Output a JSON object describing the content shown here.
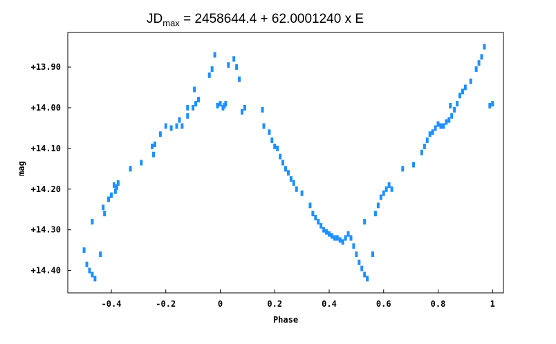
{
  "chart_data": {
    "type": "scatter",
    "title": {
      "prefix": "JD",
      "subscript": "max",
      "suffix": " = 2458644.4 + 62.0001240 x E"
    },
    "xlabel": "Phase",
    "ylabel": "mag",
    "xlim": [
      -0.56,
      1.04
    ],
    "ylim": [
      14.455,
      13.815
    ],
    "y_inverted": true,
    "grid": false,
    "x_ticks": [
      {
        "value": -0.4,
        "label": "-0.4"
      },
      {
        "value": -0.2,
        "label": "-0.2"
      },
      {
        "value": 0,
        "label": "0"
      },
      {
        "value": 0.2,
        "label": "0.2"
      },
      {
        "value": 0.4,
        "label": "0.4"
      },
      {
        "value": 0.6,
        "label": "0.6"
      },
      {
        "value": 0.8,
        "label": "0.8"
      },
      {
        "value": 1,
        "label": "1"
      }
    ],
    "y_ticks": [
      {
        "value": 13.9,
        "label": "+13.90"
      },
      {
        "value": 14.0,
        "label": "+14.00"
      },
      {
        "value": 14.1,
        "label": "+14.10"
      },
      {
        "value": 14.2,
        "label": "+14.20"
      },
      {
        "value": 14.3,
        "label": "+14.30"
      },
      {
        "value": 14.4,
        "label": "+14.40"
      }
    ],
    "series": [
      {
        "color": "#1f8fff",
        "points": [
          [
            -0.5,
            14.35
          ],
          [
            -0.49,
            14.385
          ],
          [
            -0.48,
            14.4
          ],
          [
            -0.47,
            14.41
          ],
          [
            -0.46,
            14.42
          ],
          [
            -0.47,
            14.28
          ],
          [
            -0.44,
            14.36
          ],
          [
            -0.43,
            14.245
          ],
          [
            -0.425,
            14.26
          ],
          [
            -0.41,
            14.225
          ],
          [
            -0.4,
            14.215
          ],
          [
            -0.39,
            14.19
          ],
          [
            -0.385,
            14.205
          ],
          [
            -0.38,
            14.195
          ],
          [
            -0.375,
            14.185
          ],
          [
            -0.33,
            14.15
          ],
          [
            -0.29,
            14.135
          ],
          [
            -0.25,
            14.095
          ],
          [
            -0.245,
            14.115
          ],
          [
            -0.24,
            14.09
          ],
          [
            -0.22,
            14.065
          ],
          [
            -0.2,
            14.045
          ],
          [
            -0.18,
            14.05
          ],
          [
            -0.16,
            14.045
          ],
          [
            -0.15,
            14.03
          ],
          [
            -0.14,
            14.045
          ],
          [
            -0.12,
            14.02
          ],
          [
            -0.1,
            14.0
          ],
          [
            -0.09,
            13.99
          ],
          [
            -0.08,
            13.98
          ],
          [
            -0.095,
            13.955
          ],
          [
            -0.12,
            14.0
          ],
          [
            -0.04,
            13.92
          ],
          [
            -0.03,
            13.905
          ],
          [
            -0.02,
            13.87
          ],
          [
            -0.01,
            13.995
          ],
          [
            0.0,
            13.99
          ],
          [
            0.01,
            14.0
          ],
          [
            0.015,
            13.995
          ],
          [
            0.02,
            13.99
          ],
          [
            0.03,
            13.895
          ],
          [
            0.05,
            13.88
          ],
          [
            0.06,
            13.9
          ],
          [
            0.07,
            13.93
          ],
          [
            0.08,
            14.01
          ],
          [
            0.09,
            14.0
          ],
          [
            0.155,
            14.005
          ],
          [
            0.16,
            14.045
          ],
          [
            0.18,
            14.06
          ],
          [
            0.19,
            14.08
          ],
          [
            0.2,
            14.095
          ],
          [
            0.21,
            14.1
          ],
          [
            0.22,
            14.12
          ],
          [
            0.23,
            14.135
          ],
          [
            0.24,
            14.15
          ],
          [
            0.25,
            14.16
          ],
          [
            0.26,
            14.175
          ],
          [
            0.27,
            14.185
          ],
          [
            0.28,
            14.2
          ],
          [
            0.3,
            14.21
          ],
          [
            0.33,
            14.24
          ],
          [
            0.34,
            14.26
          ],
          [
            0.35,
            14.27
          ],
          [
            0.36,
            14.28
          ],
          [
            0.37,
            14.29
          ],
          [
            0.38,
            14.3
          ],
          [
            0.39,
            14.305
          ],
          [
            0.4,
            14.31
          ],
          [
            0.41,
            14.315
          ],
          [
            0.42,
            14.32
          ],
          [
            0.43,
            14.32
          ],
          [
            0.44,
            14.325
          ],
          [
            0.45,
            14.33
          ],
          [
            0.46,
            14.32
          ],
          [
            0.47,
            14.31
          ],
          [
            0.48,
            14.32
          ],
          [
            0.49,
            14.34
          ],
          [
            0.5,
            14.36
          ],
          [
            0.51,
            14.38
          ],
          [
            0.52,
            14.395
          ],
          [
            0.53,
            14.41
          ],
          [
            0.54,
            14.42
          ],
          [
            0.56,
            14.36
          ],
          [
            0.53,
            14.28
          ],
          [
            0.57,
            14.26
          ],
          [
            0.58,
            14.24
          ],
          [
            0.59,
            14.22
          ],
          [
            0.6,
            14.21
          ],
          [
            0.61,
            14.2
          ],
          [
            0.62,
            14.19
          ],
          [
            0.63,
            14.2
          ],
          [
            0.67,
            14.15
          ],
          [
            0.71,
            14.14
          ],
          [
            0.74,
            14.11
          ],
          [
            0.75,
            14.095
          ],
          [
            0.76,
            14.08
          ],
          [
            0.77,
            14.065
          ],
          [
            0.78,
            14.06
          ],
          [
            0.79,
            14.05
          ],
          [
            0.8,
            14.04
          ],
          [
            0.81,
            14.045
          ],
          [
            0.82,
            14.045
          ],
          [
            0.83,
            14.035
          ],
          [
            0.84,
            14.03
          ],
          [
            0.845,
            13.995
          ],
          [
            0.85,
            14.02
          ],
          [
            0.86,
            14.005
          ],
          [
            0.87,
            13.99
          ],
          [
            0.88,
            13.97
          ],
          [
            0.89,
            13.96
          ],
          [
            0.9,
            13.95
          ],
          [
            0.92,
            13.935
          ],
          [
            0.94,
            13.905
          ],
          [
            0.95,
            13.89
          ],
          [
            0.96,
            13.875
          ],
          [
            0.97,
            13.85
          ],
          [
            0.99,
            13.995
          ],
          [
            1.0,
            13.99
          ]
        ]
      }
    ]
  }
}
